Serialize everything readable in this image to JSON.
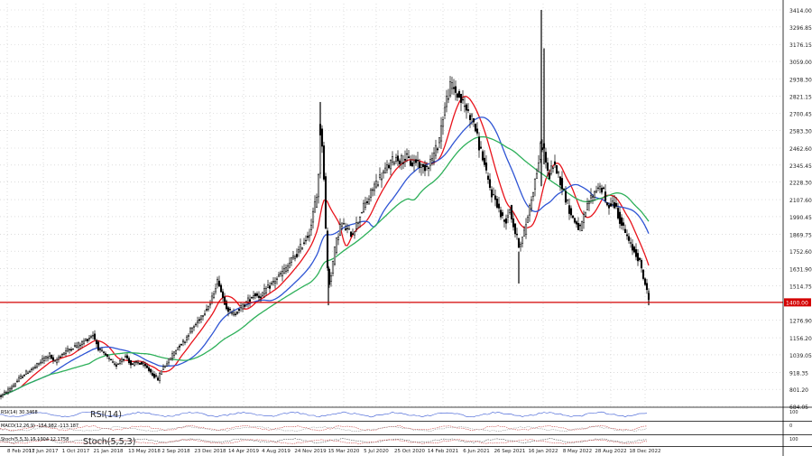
{
  "chart_data": {
    "type": "candlestick",
    "main_panel": {
      "y_ticks": [
        684.05,
        801.2,
        918.35,
        1039.05,
        1156.2,
        1276.9,
        1400.0,
        1514.75,
        1631.9,
        1752.6,
        1869.75,
        1990.45,
        2107.6,
        2228.3,
        2345.45,
        2462.6,
        2583.3,
        2700.45,
        2821.15,
        2938.3,
        3059.0,
        3176.15,
        3296.85,
        3414.0
      ],
      "y_tick_labels": [
        "684.05",
        "801.20",
        "918.35",
        "1039.05",
        "1156.20",
        "1276.90",
        "1400.00",
        "1514.75",
        "1631.90",
        "1752.60",
        "1869.75",
        "1990.45",
        "2107.60",
        "2228.30",
        "2345.45",
        "2462.60",
        "2583.30",
        "2700.45",
        "2821.15",
        "2938.30",
        "3059.00",
        "3176.15",
        "3296.85",
        "3414.00"
      ],
      "ylim": [
        650,
        3450
      ],
      "grid": true,
      "horizontal_line": {
        "value": 1400.0,
        "label": "1400.00",
        "color": "#d40000"
      },
      "ma_colors": {
        "fast": "#e8131b",
        "medium": "#2f55d4",
        "slow": "#2eb05a"
      },
      "candle_color": "#000000",
      "close_path": [
        [
          0,
          750
        ],
        [
          8,
          790
        ],
        [
          15,
          830
        ],
        [
          22,
          880
        ],
        [
          30,
          920
        ],
        [
          40,
          960
        ],
        [
          48,
          1010
        ],
        [
          55,
          1040
        ],
        [
          60,
          980
        ],
        [
          66,
          1030
        ],
        [
          72,
          1060
        ],
        [
          80,
          1090
        ],
        [
          88,
          1110
        ],
        [
          95,
          1140
        ],
        [
          103,
          1180
        ],
        [
          110,
          1070
        ],
        [
          116,
          1040
        ],
        [
          122,
          1000
        ],
        [
          128,
          960
        ],
        [
          134,
          1010
        ],
        [
          140,
          1030
        ],
        [
          146,
          960
        ],
        [
          152,
          990
        ],
        [
          158,
          970
        ],
        [
          164,
          940
        ],
        [
          170,
          900
        ],
        [
          175,
          870
        ],
        [
          180,
          950
        ],
        [
          186,
          990
        ],
        [
          192,
          1050
        ],
        [
          198,
          1100
        ],
        [
          205,
          1140
        ],
        [
          210,
          1200
        ],
        [
          216,
          1240
        ],
        [
          222,
          1300
        ],
        [
          228,
          1350
        ],
        [
          234,
          1400
        ],
        [
          238,
          1500
        ],
        [
          242,
          1560
        ],
        [
          246,
          1450
        ],
        [
          252,
          1360
        ],
        [
          258,
          1310
        ],
        [
          264,
          1350
        ],
        [
          270,
          1380
        ],
        [
          276,
          1420
        ],
        [
          282,
          1460
        ],
        [
          288,
          1440
        ],
        [
          294,
          1480
        ],
        [
          300,
          1520
        ],
        [
          306,
          1560
        ],
        [
          312,
          1600
        ],
        [
          318,
          1640
        ],
        [
          324,
          1700
        ],
        [
          330,
          1740
        ],
        [
          335,
          1800
        ],
        [
          340,
          1850
        ],
        [
          344,
          1900
        ],
        [
          348,
          2050
        ],
        [
          352,
          2150
        ],
        [
          355,
          2600
        ],
        [
          358,
          2450
        ],
        [
          361,
          1900
        ],
        [
          364,
          1500
        ],
        [
          367,
          1600
        ],
        [
          372,
          1800
        ],
        [
          378,
          1950
        ],
        [
          384,
          1900
        ],
        [
          390,
          1870
        ],
        [
          396,
          1950
        ],
        [
          402,
          2050
        ],
        [
          408,
          2100
        ],
        [
          414,
          2200
        ],
        [
          420,
          2250
        ],
        [
          426,
          2300
        ],
        [
          432,
          2350
        ],
        [
          438,
          2400
        ],
        [
          444,
          2380
        ],
        [
          450,
          2400
        ],
        [
          456,
          2350
        ],
        [
          462,
          2380
        ],
        [
          468,
          2320
        ],
        [
          474,
          2350
        ],
        [
          480,
          2400
        ],
        [
          486,
          2500
        ],
        [
          490,
          2650
        ],
        [
          495,
          2800
        ],
        [
          500,
          2900
        ],
        [
          505,
          2850
        ],
        [
          510,
          2800
        ],
        [
          515,
          2750
        ],
        [
          520,
          2700
        ],
        [
          525,
          2650
        ],
        [
          530,
          2500
        ],
        [
          535,
          2400
        ],
        [
          540,
          2250
        ],
        [
          545,
          2150
        ],
        [
          550,
          2100
        ],
        [
          555,
          2000
        ],
        [
          560,
          1950
        ],
        [
          565,
          2050
        ],
        [
          570,
          1900
        ],
        [
          575,
          1800
        ],
        [
          580,
          1850
        ],
        [
          585,
          2000
        ],
        [
          590,
          2150
        ],
        [
          595,
          2300
        ],
        [
          600,
          2500
        ],
        [
          603,
          2450
        ],
        [
          608,
          2250
        ],
        [
          613,
          2350
        ],
        [
          618,
          2300
        ],
        [
          623,
          2200
        ],
        [
          628,
          2100
        ],
        [
          633,
          2000
        ],
        [
          638,
          1950
        ],
        [
          643,
          1900
        ],
        [
          648,
          2000
        ],
        [
          653,
          2100
        ],
        [
          658,
          2150
        ],
        [
          663,
          2200
        ],
        [
          668,
          2180
        ],
        [
          673,
          2050
        ],
        [
          678,
          2100
        ],
        [
          683,
          2050
        ],
        [
          688,
          1950
        ],
        [
          693,
          1880
        ],
        [
          698,
          1800
        ],
        [
          703,
          1750
        ],
        [
          708,
          1700
        ],
        [
          712,
          1600
        ],
        [
          716,
          1500
        ],
        [
          719,
          1420
        ]
      ],
      "extremes": [
        {
          "x": 355,
          "high": 2780,
          "low": 2550
        },
        {
          "x": 364,
          "high": 1650,
          "low": 1380
        },
        {
          "x": 600,
          "high": 3414,
          "low": 2200
        },
        {
          "x": 603,
          "high": 3150,
          "low": 2350
        },
        {
          "x": 575,
          "high": 1750,
          "low": 1530
        },
        {
          "x": 719,
          "high": 1480,
          "low": 1380
        }
      ]
    },
    "sub_panels": [
      {
        "label": "RSI(14)",
        "info": "RSI(14) 30.3468"
      },
      {
        "label": "",
        "info": "MACD(12,26,9) -154.982 -113.187"
      },
      {
        "label": "Stoch(5,5,3)",
        "info": "Stoch(5,5,3) 15.1304 12.1758"
      }
    ],
    "x_labels": [
      "8 Feb 2017",
      "11 Jun 2017",
      "1 Oct 2017",
      "21 Jan 2018",
      "13 May 2018",
      "2 Sep 2018",
      "23 Dec 2018",
      "14 Apr 2019",
      "4 Aug 2019",
      "24 Nov 2019",
      "15 Mar 2020",
      "5 Jul 2020",
      "25 Oct 2020",
      "14 Feb 2021",
      "6 Jun 2021",
      "26 Sep 2021",
      "16 Jan 2022",
      "8 May 2022",
      "28 Aug 2022",
      "18 Dec 2022"
    ]
  }
}
